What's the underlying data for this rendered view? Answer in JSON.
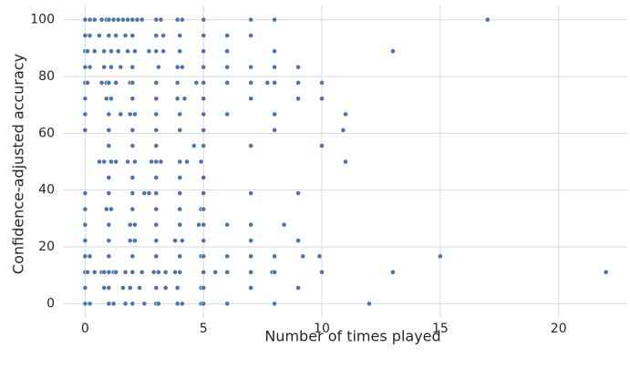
{
  "chart_data": {
    "type": "scatter",
    "xlabel": "Number of times played",
    "ylabel": "Confidence-adjusted accuracy",
    "xlim": [
      -0.9,
      22.9
    ],
    "ylim": [
      -5,
      105
    ],
    "xticks": [
      0,
      5,
      10,
      15,
      20
    ],
    "yticks": [
      0,
      20,
      40,
      60,
      80,
      100
    ],
    "grid": true,
    "colors": {
      "point": "#4c72b0",
      "grid": "#d9d9d9",
      "background": "#ffffff",
      "text": "#262626"
    },
    "series": [
      {
        "points": [
          [
            0,
            100
          ],
          [
            0.2,
            100
          ],
          [
            0.4,
            100
          ],
          [
            0.7,
            100
          ],
          [
            0.9,
            100
          ],
          [
            1.0,
            100
          ],
          [
            1.2,
            100
          ],
          [
            1.4,
            100
          ],
          [
            1.6,
            100
          ],
          [
            1.8,
            100
          ],
          [
            2.0,
            100
          ],
          [
            2.2,
            100
          ],
          [
            2.4,
            100
          ],
          [
            3.0,
            100
          ],
          [
            3.2,
            100
          ],
          [
            3.9,
            100
          ],
          [
            4.1,
            100
          ],
          [
            5,
            100
          ],
          [
            7,
            100
          ],
          [
            8,
            100
          ],
          [
            17,
            100
          ],
          [
            0,
            94.4
          ],
          [
            0.2,
            94.4
          ],
          [
            0.6,
            94.4
          ],
          [
            1.0,
            94.4
          ],
          [
            1.3,
            94.4
          ],
          [
            1.7,
            94.4
          ],
          [
            2.0,
            94.4
          ],
          [
            3.0,
            94.4
          ],
          [
            3.3,
            94.4
          ],
          [
            4.0,
            94.4
          ],
          [
            5,
            94.4
          ],
          [
            6,
            94.4
          ],
          [
            7,
            94.4
          ],
          [
            0,
            88.9
          ],
          [
            0.1,
            88.9
          ],
          [
            0.4,
            88.9
          ],
          [
            0.8,
            88.9
          ],
          [
            1.1,
            88.9
          ],
          [
            1.4,
            88.9
          ],
          [
            1.8,
            88.9
          ],
          [
            2.1,
            88.9
          ],
          [
            2.7,
            88.9
          ],
          [
            3.0,
            88.9
          ],
          [
            3.3,
            88.9
          ],
          [
            4.0,
            88.9
          ],
          [
            5,
            88.9
          ],
          [
            6,
            88.9
          ],
          [
            8,
            88.9
          ],
          [
            13,
            88.9
          ],
          [
            0,
            83.3
          ],
          [
            0.2,
            83.3
          ],
          [
            0.8,
            83.3
          ],
          [
            1.1,
            83.3
          ],
          [
            1.5,
            83.3
          ],
          [
            2.0,
            83.3
          ],
          [
            3.1,
            83.3
          ],
          [
            3.9,
            83.3
          ],
          [
            4.1,
            83.3
          ],
          [
            5,
            83.3
          ],
          [
            6,
            83.3
          ],
          [
            7,
            83.3
          ],
          [
            8,
            83.3
          ],
          [
            9,
            83.3
          ],
          [
            0,
            77.8
          ],
          [
            0.1,
            77.8
          ],
          [
            0.7,
            77.8
          ],
          [
            0.9,
            77.8
          ],
          [
            1.0,
            77.8
          ],
          [
            1.3,
            77.8
          ],
          [
            1.9,
            77.8
          ],
          [
            2.0,
            77.8
          ],
          [
            3.0,
            77.8
          ],
          [
            3.9,
            77.8
          ],
          [
            4.7,
            77.8
          ],
          [
            5,
            77.8
          ],
          [
            6,
            77.8
          ],
          [
            7,
            77.8
          ],
          [
            7.7,
            77.8
          ],
          [
            8,
            77.8
          ],
          [
            9,
            77.8
          ],
          [
            10,
            77.8
          ],
          [
            0,
            72.2
          ],
          [
            0.9,
            72.2
          ],
          [
            1.1,
            72.2
          ],
          [
            2.0,
            72.2
          ],
          [
            3.0,
            72.2
          ],
          [
            3.9,
            72.2
          ],
          [
            4.2,
            72.2
          ],
          [
            5,
            72.2
          ],
          [
            7,
            72.2
          ],
          [
            9,
            72.2
          ],
          [
            10,
            72.2
          ],
          [
            0,
            66.7
          ],
          [
            1.0,
            66.7
          ],
          [
            1.5,
            66.7
          ],
          [
            1.9,
            66.7
          ],
          [
            2.1,
            66.7
          ],
          [
            3.0,
            66.7
          ],
          [
            4.0,
            66.7
          ],
          [
            5,
            66.7
          ],
          [
            6,
            66.7
          ],
          [
            8,
            66.7
          ],
          [
            11,
            66.7
          ],
          [
            0,
            61.1
          ],
          [
            1.0,
            61.1
          ],
          [
            2.0,
            61.1
          ],
          [
            3.0,
            61.1
          ],
          [
            4.0,
            61.1
          ],
          [
            5,
            61.1
          ],
          [
            8,
            61.1
          ],
          [
            10.9,
            61.1
          ],
          [
            1.0,
            55.6
          ],
          [
            2.0,
            55.6
          ],
          [
            3.0,
            55.6
          ],
          [
            4.6,
            55.6
          ],
          [
            5,
            55.6
          ],
          [
            7,
            55.6
          ],
          [
            10,
            55.6
          ],
          [
            0.6,
            50
          ],
          [
            0.8,
            50
          ],
          [
            1.1,
            50
          ],
          [
            1.3,
            50
          ],
          [
            1.8,
            50
          ],
          [
            2.1,
            50
          ],
          [
            2.8,
            50
          ],
          [
            3.0,
            50
          ],
          [
            3.2,
            50
          ],
          [
            4.0,
            50
          ],
          [
            4.3,
            50
          ],
          [
            4.9,
            50
          ],
          [
            11,
            50
          ],
          [
            1.0,
            44.4
          ],
          [
            2.0,
            44.4
          ],
          [
            3.0,
            44.4
          ],
          [
            4.0,
            44.4
          ],
          [
            5,
            44.4
          ],
          [
            0,
            38.9
          ],
          [
            1.0,
            38.9
          ],
          [
            2.0,
            38.9
          ],
          [
            2.5,
            38.9
          ],
          [
            2.7,
            38.9
          ],
          [
            3.0,
            38.9
          ],
          [
            4.0,
            38.9
          ],
          [
            5,
            38.9
          ],
          [
            7,
            38.9
          ],
          [
            9,
            38.9
          ],
          [
            0,
            33.3
          ],
          [
            0.9,
            33.3
          ],
          [
            1.1,
            33.3
          ],
          [
            2.0,
            33.3
          ],
          [
            3.0,
            33.3
          ],
          [
            4.0,
            33.3
          ],
          [
            4.9,
            33.3
          ],
          [
            5,
            33.3
          ],
          [
            0,
            27.8
          ],
          [
            1.0,
            27.8
          ],
          [
            1.9,
            27.8
          ],
          [
            2.1,
            27.8
          ],
          [
            3.0,
            27.8
          ],
          [
            4.0,
            27.8
          ],
          [
            4.8,
            27.8
          ],
          [
            5,
            27.8
          ],
          [
            6,
            27.8
          ],
          [
            7,
            27.8
          ],
          [
            8.4,
            27.8
          ],
          [
            0,
            22.2
          ],
          [
            1.0,
            22.2
          ],
          [
            1.9,
            22.2
          ],
          [
            2.1,
            22.2
          ],
          [
            3.0,
            22.2
          ],
          [
            3.8,
            22.2
          ],
          [
            4.1,
            22.2
          ],
          [
            5,
            22.2
          ],
          [
            7,
            22.2
          ],
          [
            9,
            22.2
          ],
          [
            0,
            16.7
          ],
          [
            0.2,
            16.7
          ],
          [
            1.0,
            16.7
          ],
          [
            2.0,
            16.7
          ],
          [
            3.0,
            16.7
          ],
          [
            4.0,
            16.7
          ],
          [
            4.9,
            16.7
          ],
          [
            5,
            16.7
          ],
          [
            6,
            16.7
          ],
          [
            7,
            16.7
          ],
          [
            8,
            16.7
          ],
          [
            9.2,
            16.7
          ],
          [
            9.9,
            16.7
          ],
          [
            15,
            16.7
          ],
          [
            0,
            11.1
          ],
          [
            0.1,
            11.1
          ],
          [
            0.4,
            11.1
          ],
          [
            0.7,
            11.1
          ],
          [
            0.8,
            11.1
          ],
          [
            1.0,
            11.1
          ],
          [
            1.2,
            11.1
          ],
          [
            1.3,
            11.1
          ],
          [
            1.7,
            11.1
          ],
          [
            2.0,
            11.1
          ],
          [
            2.4,
            11.1
          ],
          [
            2.9,
            11.1
          ],
          [
            3.1,
            11.1
          ],
          [
            3.4,
            11.1
          ],
          [
            3.8,
            11.1
          ],
          [
            4.0,
            11.1
          ],
          [
            5,
            11.1
          ],
          [
            5.5,
            11.1
          ],
          [
            6,
            11.1
          ],
          [
            7,
            11.1
          ],
          [
            7.9,
            11.1
          ],
          [
            8,
            11.1
          ],
          [
            10,
            11.1
          ],
          [
            13,
            11.1
          ],
          [
            22,
            11.1
          ],
          [
            0,
            5.6
          ],
          [
            0.8,
            5.6
          ],
          [
            1.0,
            5.6
          ],
          [
            1.6,
            5.6
          ],
          [
            1.9,
            5.6
          ],
          [
            2.3,
            5.6
          ],
          [
            3.0,
            5.6
          ],
          [
            3.4,
            5.6
          ],
          [
            3.9,
            5.6
          ],
          [
            4.9,
            5.6
          ],
          [
            5,
            5.6
          ],
          [
            7,
            5.6
          ],
          [
            9,
            5.6
          ],
          [
            0,
            0
          ],
          [
            0.2,
            0
          ],
          [
            1.0,
            0
          ],
          [
            1.2,
            0
          ],
          [
            1.7,
            0
          ],
          [
            2.0,
            0
          ],
          [
            2.5,
            0
          ],
          [
            3.0,
            0
          ],
          [
            3.1,
            0
          ],
          [
            3.9,
            0
          ],
          [
            4.1,
            0
          ],
          [
            4.9,
            0
          ],
          [
            5,
            0
          ],
          [
            6,
            0
          ],
          [
            8,
            0
          ],
          [
            12,
            0
          ]
        ]
      }
    ]
  }
}
